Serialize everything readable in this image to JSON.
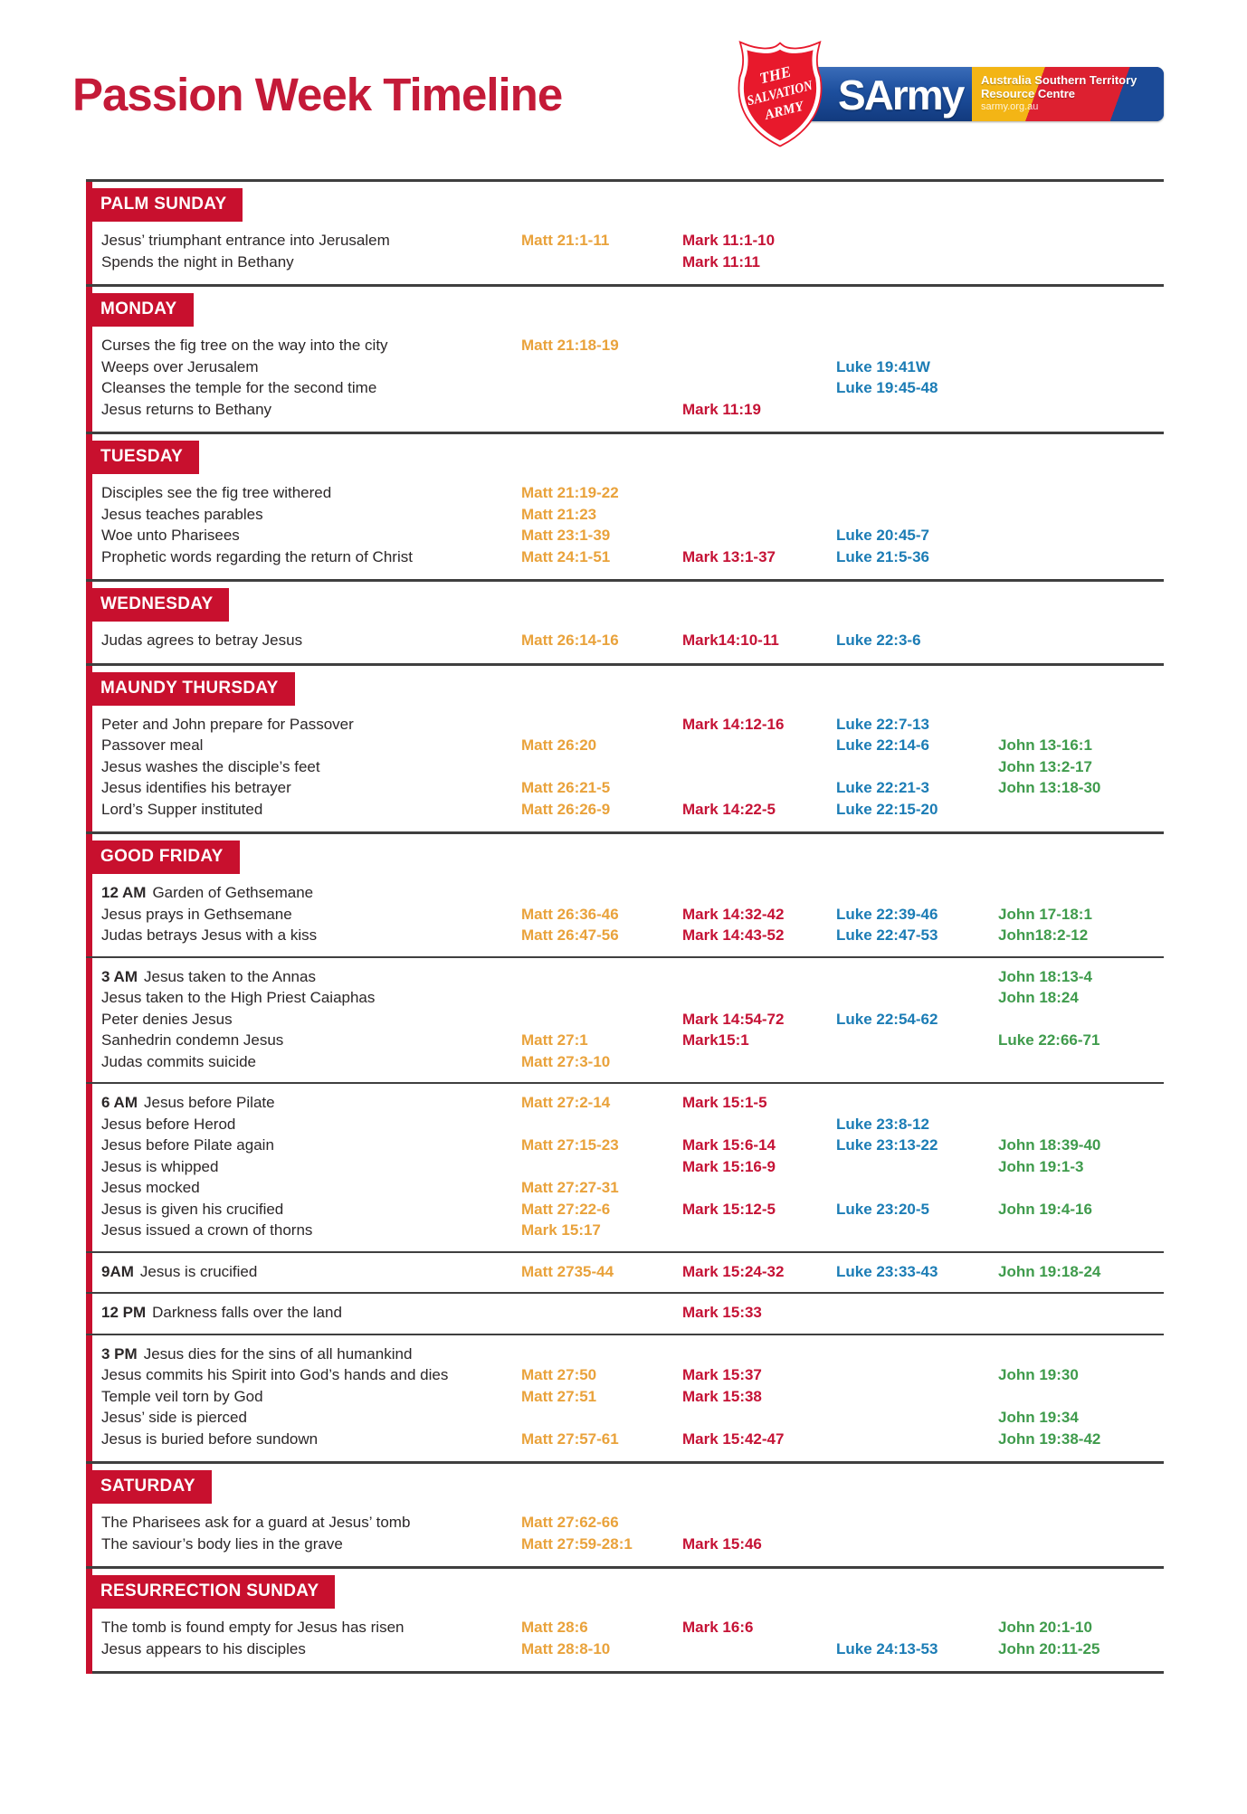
{
  "header": {
    "title": "Passion Week Timeline"
  },
  "logo": {
    "shield_top": "THE",
    "shield_mid": "SALVATION",
    "shield_bottom": "ARMY",
    "brand": "SArmy",
    "line1": "Australia Southern Territory",
    "line2": "Resource Centre",
    "line3": "sarmy.org.au"
  },
  "colors": {
    "title": "#c41a38",
    "day_header_bg": "#c8102e",
    "rule": "#3f3f3f",
    "text": "#2b2728",
    "matt": "#e9a23b",
    "mark": "#c51235",
    "luke": "#1b7cb5",
    "john": "#3f9b4c"
  },
  "sections": [
    {
      "day": "PALM SUNDAY",
      "blocks": [
        {
          "rows": [
            {
              "time": "",
              "event": "Jesus’ triumphant entrance into Jerusalem",
              "matt": "Matt 21:1-11",
              "mark": "Mark 11:1-10",
              "luke": "",
              "john": ""
            },
            {
              "time": "",
              "event": "Spends the night in Bethany",
              "matt": "",
              "mark": "Mark 11:11",
              "luke": "",
              "john": ""
            }
          ]
        }
      ]
    },
    {
      "day": "MONDAY",
      "blocks": [
        {
          "rows": [
            {
              "time": "",
              "event": "Curses the fig tree on the way into the city",
              "matt": "Matt 21:18-19",
              "mark": "",
              "luke": "",
              "john": ""
            },
            {
              "time": "",
              "event": "Weeps over Jerusalem",
              "matt": "",
              "mark": "",
              "luke": "Luke 19:41W",
              "john": ""
            },
            {
              "time": "",
              "event": "Cleanses the temple for the second time",
              "matt": "",
              "mark": "",
              "luke": "Luke 19:45-48",
              "john": ""
            },
            {
              "time": "",
              "event": "Jesus returns to Bethany",
              "matt": "",
              "mark": "Mark 11:19",
              "luke": "",
              "john": ""
            }
          ]
        }
      ]
    },
    {
      "day": "TUESDAY",
      "blocks": [
        {
          "rows": [
            {
              "time": "",
              "event": "Disciples see the fig tree withered",
              "matt": "Matt 21:19-22",
              "mark": "",
              "luke": "",
              "john": ""
            },
            {
              "time": "",
              "event": "Jesus teaches parables",
              "matt": "Matt 21:23",
              "mark": "",
              "luke": "",
              "john": ""
            },
            {
              "time": "",
              "event": "Woe unto Pharisees",
              "matt": "Matt 23:1-39",
              "mark": "",
              "luke": "Luke 20:45-7",
              "john": ""
            },
            {
              "time": "",
              "event": "Prophetic words regarding the return of Christ",
              "matt": "Matt 24:1-51",
              "mark": "Mark 13:1-37",
              "luke": "Luke 21:5-36",
              "john": ""
            }
          ]
        }
      ]
    },
    {
      "day": "WEDNESDAY",
      "blocks": [
        {
          "rows": [
            {
              "time": "",
              "event": "Judas agrees to betray Jesus",
              "matt": "Matt 26:14-16",
              "mark": "Mark14:10-11",
              "luke": "Luke 22:3-6",
              "john": ""
            }
          ]
        }
      ]
    },
    {
      "day": "MAUNDY THURSDAY",
      "blocks": [
        {
          "rows": [
            {
              "time": "",
              "event": "Peter and John prepare for Passover",
              "matt": "",
              "mark": "Mark 14:12-16",
              "luke": "Luke 22:7-13",
              "john": ""
            },
            {
              "time": "",
              "event": "Passover meal",
              "matt": "Matt 26:20",
              "mark": "",
              "luke": "Luke 22:14-6",
              "john": "John 13-16:1"
            },
            {
              "time": "",
              "event": "Jesus washes the disciple’s feet",
              "matt": "",
              "mark": "",
              "luke": "",
              "john": "John 13:2-17"
            },
            {
              "time": "",
              "event": "Jesus identifies his betrayer",
              "matt": "Matt 26:21-5",
              "mark": "",
              "luke": "Luke 22:21-3",
              "john": "John 13:18-30"
            },
            {
              "time": "",
              "event": "Lord’s Supper instituted",
              "matt": "Matt 26:26-9",
              "mark": "Mark 14:22-5",
              "luke": "Luke 22:15-20",
              "john": ""
            }
          ]
        }
      ]
    },
    {
      "day": "GOOD FRIDAY",
      "blocks": [
        {
          "rows": [
            {
              "time": "12 AM",
              "event": "Garden of Gethsemane",
              "matt": "",
              "mark": "",
              "luke": "",
              "john": ""
            },
            {
              "time": "",
              "event": "Jesus prays in Gethsemane",
              "matt": "Matt 26:36-46",
              "mark": "Mark 14:32-42",
              "luke": "Luke 22:39-46",
              "john": "John 17-18:1"
            },
            {
              "time": "",
              "event": "Judas betrays Jesus with a kiss",
              "matt": "Matt 26:47-56",
              "mark": "Mark 14:43-52",
              "luke": "Luke 22:47-53",
              "john": "John18:2-12"
            }
          ]
        },
        {
          "rows": [
            {
              "time": "3 AM",
              "event": "Jesus taken to the Annas",
              "matt": "",
              "mark": "",
              "luke": "",
              "john": "John 18:13-4"
            },
            {
              "time": "",
              "event": "Jesus taken to the High Priest Caiaphas",
              "matt": "",
              "mark": "",
              "luke": "",
              "john": "John 18:24"
            },
            {
              "time": "",
              "event": "Peter denies Jesus",
              "matt": "",
              "mark": "Mark 14:54-72",
              "luke": "Luke 22:54-62",
              "john": ""
            },
            {
              "time": "",
              "event": "Sanhedrin condemn Jesus",
              "matt": "Matt 27:1",
              "mark": "Mark15:1",
              "luke": "",
              "john": "Luke 22:66-71"
            },
            {
              "time": "",
              "event": "Judas commits suicide",
              "matt": "Matt 27:3-10",
              "mark": "",
              "luke": "",
              "john": ""
            }
          ]
        },
        {
          "rows": [
            {
              "time": "6 AM",
              "event": "Jesus before Pilate",
              "matt": "Matt 27:2-14",
              "mark": "Mark 15:1-5",
              "luke": "",
              "john": ""
            },
            {
              "time": "",
              "event": "Jesus before Herod",
              "matt": "",
              "mark": "",
              "luke": "Luke 23:8-12",
              "john": ""
            },
            {
              "time": "",
              "event": "Jesus before Pilate again",
              "matt": "Matt 27:15-23",
              "mark": "Mark 15:6-14",
              "luke": "Luke 23:13-22",
              "john": "John 18:39-40"
            },
            {
              "time": "",
              "event": "Jesus is whipped",
              "matt": "",
              "mark": "Mark 15:16-9",
              "luke": "",
              "john": "John 19:1-3"
            },
            {
              "time": "",
              "event": "Jesus mocked",
              "matt": "Matt 27:27-31",
              "mark": "",
              "luke": "",
              "john": ""
            },
            {
              "time": "",
              "event": "Jesus is given his crucified",
              "matt": "Matt 27:22-6",
              "mark": "Mark 15:12-5",
              "luke": "Luke 23:20-5",
              "john": "John 19:4-16"
            },
            {
              "time": "",
              "event": "Jesus issued a crown of thorns",
              "matt": "Mark 15:17",
              "mark": "",
              "luke": "",
              "john": ""
            }
          ]
        },
        {
          "rows": [
            {
              "time": "9AM",
              "event": "Jesus is crucified",
              "matt": "Matt 2735-44",
              "mark": "Mark 15:24-32",
              "luke": "Luke 23:33-43",
              "john": "John 19:18-24"
            }
          ]
        },
        {
          "rows": [
            {
              "time": "12 PM",
              "event": "Darkness falls over the land",
              "matt": "",
              "mark": "Mark 15:33",
              "luke": "",
              "john": ""
            }
          ]
        },
        {
          "rows": [
            {
              "time": "3 PM",
              "event": "Jesus dies for the sins of all humankind",
              "matt": "",
              "mark": "",
              "luke": "",
              "john": ""
            },
            {
              "time": "",
              "event": "Jesus commits his Spirit into God’s hands and dies",
              "matt": "Matt 27:50",
              "mark": "Mark 15:37",
              "luke": "",
              "john": "John 19:30"
            },
            {
              "time": "",
              "event": "Temple veil torn by God",
              "matt": "Matt 27:51",
              "mark": "Mark 15:38",
              "luke": "",
              "john": ""
            },
            {
              "time": "",
              "event": "Jesus’ side is pierced",
              "matt": "",
              "mark": "",
              "luke": "",
              "john": "John 19:34"
            },
            {
              "time": "",
              "event": "Jesus is buried before sundown",
              "matt": "Matt 27:57-61",
              "mark": "Mark 15:42-47",
              "luke": "",
              "john": "John 19:38-42"
            }
          ]
        }
      ]
    },
    {
      "day": "SATURDAY",
      "blocks": [
        {
          "rows": [
            {
              "time": "",
              "event": "The Pharisees ask for a guard at Jesus’ tomb",
              "matt": "Matt 27:62-66",
              "mark": "",
              "luke": "",
              "john": ""
            },
            {
              "time": "",
              "event": "The saviour’s body lies in the grave",
              "matt": "Matt 27:59-28:1",
              "mark": "Mark 15:46",
              "luke": "",
              "john": ""
            }
          ]
        }
      ]
    },
    {
      "day": "RESURRECTION SUNDAY",
      "blocks": [
        {
          "rows": [
            {
              "time": "",
              "event": "The tomb is found empty for Jesus has risen",
              "matt": "Matt 28:6",
              "mark": "Mark 16:6",
              "luke": "",
              "john": "John 20:1-10"
            },
            {
              "time": "",
              "event": "Jesus appears to his disciples",
              "matt": "Matt 28:8-10",
              "mark": "",
              "luke": "Luke 24:13-53",
              "john": "John 20:11-25"
            }
          ]
        }
      ]
    }
  ]
}
